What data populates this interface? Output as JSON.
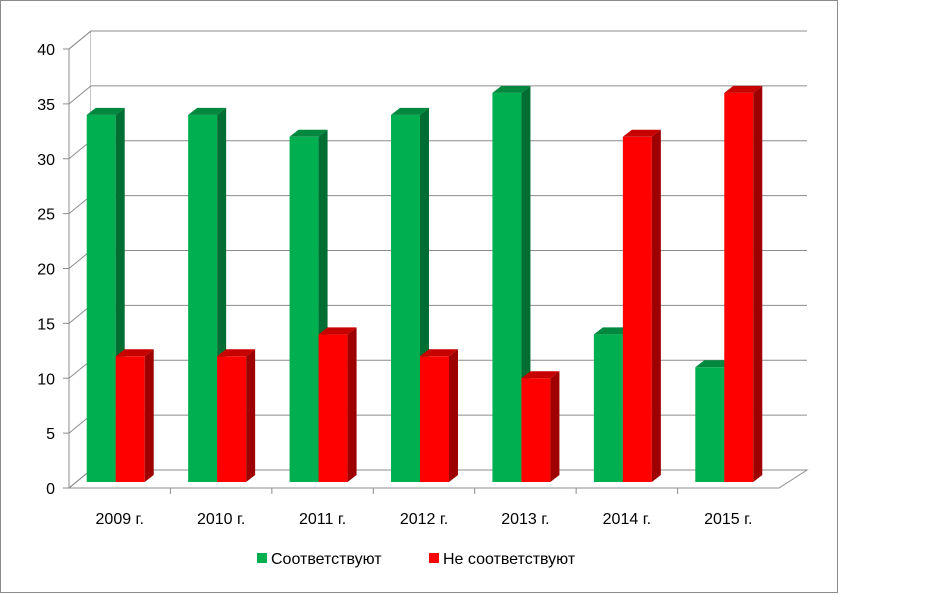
{
  "chart_data": {
    "type": "bar",
    "title": "",
    "xlabel": "",
    "ylabel": "",
    "categories": [
      "2009 г.",
      "2010 г.",
      "2011 г.",
      "2012 г.",
      "2013 г.",
      "2014 г.",
      "2015 г."
    ],
    "series": [
      {
        "name": "Соответствуют",
        "color": "#00b050",
        "values": [
          34,
          34,
          32,
          34,
          36,
          14,
          11
        ]
      },
      {
        "name": "Не соответствуют",
        "color": "#ff0000",
        "values": [
          12,
          12,
          14,
          12,
          10,
          32,
          36
        ]
      }
    ],
    "ylim": [
      0,
      40
    ],
    "yticks": [
      0,
      5,
      10,
      15,
      20,
      25,
      30,
      35,
      40
    ],
    "grid": true,
    "legend_position": "bottom",
    "style": "3d-clustered-column"
  }
}
